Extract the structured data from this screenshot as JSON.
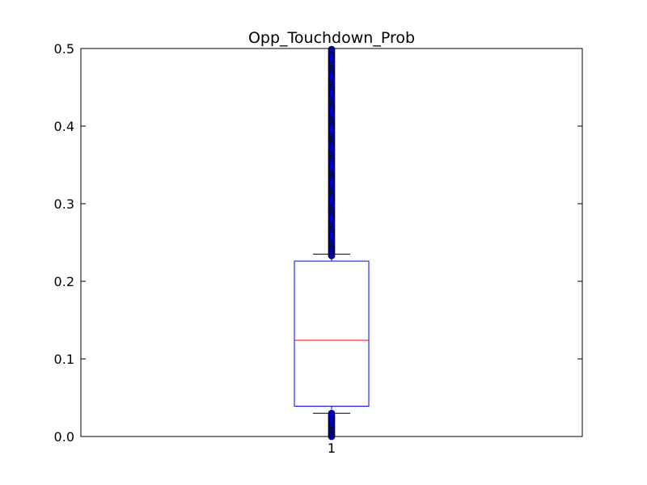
{
  "chart_data": {
    "type": "box",
    "title": "Opp_Touchdown_Prob",
    "xlabel": "",
    "ylabel": "",
    "categories": [
      "1"
    ],
    "ylim": [
      0.0,
      0.5
    ],
    "yticks": [
      "0.0",
      "0.1",
      "0.2",
      "0.3",
      "0.4",
      "0.5"
    ],
    "boxes": [
      {
        "category": "1",
        "q1": 0.039,
        "median": 0.124,
        "q3": 0.226,
        "whisker_low": 0.03,
        "whisker_high": 0.235,
        "outliers_low_range": [
          0.0,
          0.032
        ],
        "outliers_high_range": [
          0.233,
          0.5
        ]
      }
    ],
    "grid": false,
    "colors": {
      "box": "#0000ff",
      "median": "#ff0000",
      "whisker": "#000000",
      "outlier_fill": "#0000ff",
      "outlier_edge": "#000000",
      "axes": "#000000"
    }
  }
}
